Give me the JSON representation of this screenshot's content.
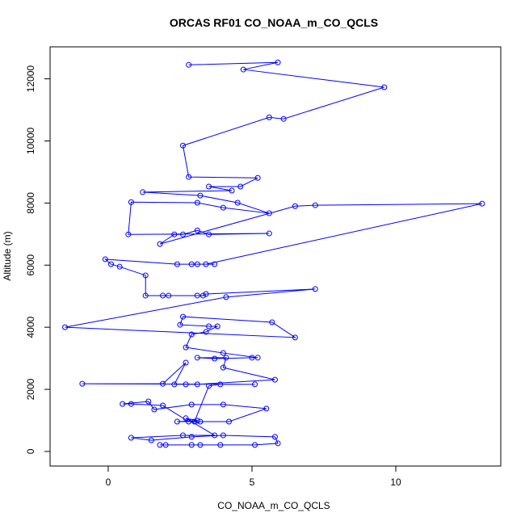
{
  "chart_data": {
    "type": "line",
    "title": "ORCAS RF01 CO_NOAA_m_CO_QCLS",
    "x_label": "CO_NOAA_m_CO_QCLS",
    "y_label": "Altitude (m)",
    "color": "#0000ff",
    "x": [
      2.0,
      1.8,
      2.9,
      3.2,
      3.9,
      5.1,
      5.9,
      5.8,
      4.0,
      2.9,
      1.5,
      0.8,
      2.6,
      3.7,
      2.7,
      3.1,
      2.4,
      3.2,
      4.2,
      5.5,
      4.0,
      2.9,
      1.6,
      1.4,
      0.5,
      0.8,
      1.9,
      2.8,
      3.0,
      3.5,
      3.9,
      5.1,
      -0.9,
      1.9,
      2.7,
      2.3,
      2.7,
      3.1,
      5.8,
      4.0,
      4.1,
      3.1,
      3.7,
      5.0,
      5.2,
      4.0,
      2.7,
      2.9,
      3.4,
      3.8,
      3.5,
      2.5,
      2.6,
      5.7,
      6.5,
      -1.5,
      4.1,
      7.2,
      3.4,
      3.3,
      3.1,
      2.1,
      1.9,
      1.3,
      1.3,
      0.4,
      0.1,
      -0.1,
      2.4,
      2.9,
      3.1,
      3.7,
      3.4,
      13.0,
      7.2,
      6.5,
      1.8,
      2.3,
      2.6,
      3.1,
      3.5,
      5.6,
      0.7,
      0.8,
      3.1,
      4.0,
      5.6,
      4.5,
      3.2,
      1.2,
      4.3,
      3.5,
      4.6,
      5.2,
      2.8,
      2.6,
      5.6,
      6.1,
      9.6,
      4.7,
      5.9,
      2.8
    ],
    "values": [
      210,
      210,
      210,
      210,
      210,
      210,
      260,
      470,
      520,
      470,
      360,
      440,
      520,
      520,
      1070,
      990,
      960,
      960,
      960,
      1380,
      1510,
      1510,
      1350,
      1610,
      1530,
      1530,
      1480,
      960,
      960,
      2110,
      2160,
      2160,
      2180,
      2180,
      2860,
      2160,
      2160,
      2160,
      2310,
      2700,
      3020,
      3020,
      2990,
      3020,
      3020,
      3170,
      3350,
      3770,
      3850,
      4030,
      4030,
      4080,
      4340,
      4160,
      3670,
      4000,
      4970,
      5230,
      5070,
      5020,
      5020,
      5020,
      5020,
      5020,
      5670,
      5950,
      6030,
      6190,
      6030,
      6030,
      6030,
      6030,
      6030,
      7980,
      7930,
      7900,
      6680,
      6990,
      6990,
      7120,
      6990,
      7020,
      6990,
      8030,
      8010,
      7850,
      7670,
      8010,
      8240,
      8350,
      8400,
      8530,
      8530,
      8810,
      8840,
      9850,
      10760,
      10710,
      11730,
      12300,
      12530,
      12450
    ],
    "xlim": [
      -2.02,
      13.65
    ],
    "ylim": [
      -470,
      13030
    ],
    "xticks": [
      0,
      5,
      10
    ],
    "yticks": [
      0,
      2000,
      4000,
      6000,
      8000,
      10000,
      12000
    ]
  }
}
